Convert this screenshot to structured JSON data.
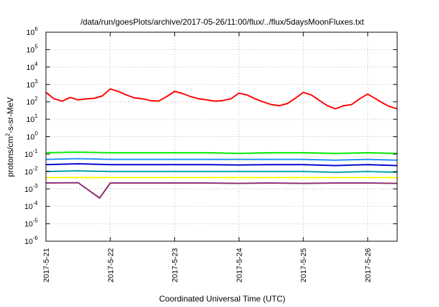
{
  "chart_data": {
    "type": "line",
    "title": "/data/run/goesPlots/archive/2017-05-26/11:00/flux/../flux/5daysMoonFluxes.txt",
    "xlabel": "Coordinated Universal Time (UTC)",
    "ylabel": {
      "pre": "protons/cm",
      "sup": "2",
      "post": "-s-sr-MeV"
    },
    "y_scale": "log",
    "ylim": [
      1e-06,
      1000000.0
    ],
    "y_ticks": [
      {
        "value": 1000000.0,
        "base": "10",
        "exp": "6"
      },
      {
        "value": 100000.0,
        "base": "10",
        "exp": "5"
      },
      {
        "value": 10000.0,
        "base": "10",
        "exp": "4"
      },
      {
        "value": 1000.0,
        "base": "10",
        "exp": "3"
      },
      {
        "value": 100.0,
        "base": "10",
        "exp": "2"
      },
      {
        "value": 10.0,
        "base": "10",
        "exp": "1"
      },
      {
        "value": 1.0,
        "base": "10",
        "exp": "0"
      },
      {
        "value": 0.1,
        "base": "10",
        "exp": "-1"
      },
      {
        "value": 0.01,
        "base": "10",
        "exp": "-2"
      },
      {
        "value": 0.001,
        "base": "10",
        "exp": "-3"
      },
      {
        "value": 0.0001,
        "base": "10",
        "exp": "-4"
      },
      {
        "value": 1e-05,
        "base": "10",
        "exp": "-5"
      },
      {
        "value": 1e-06,
        "base": "10",
        "exp": "-6"
      }
    ],
    "xlim": [
      "2017-05-21T00:00",
      "2017-05-26T11:00"
    ],
    "x_ticks": [
      "2017-5-21",
      "2017-5-22",
      "2017-5-23",
      "2017-5-24",
      "2017-5-25",
      "2017-5-26"
    ],
    "x_tick_dates": [
      "2017-05-21",
      "2017-05-22",
      "2017-05-23",
      "2017-05-24",
      "2017-05-25",
      "2017-05-26"
    ],
    "grid": true,
    "series": [
      {
        "color": "#ff0000",
        "points": [
          [
            "2017-05-21T00:00",
            350
          ],
          [
            "2017-05-21T03:00",
            150
          ],
          [
            "2017-05-21T06:00",
            110
          ],
          [
            "2017-05-21T09:00",
            180
          ],
          [
            "2017-05-21T12:00",
            130
          ],
          [
            "2017-05-21T15:00",
            150
          ],
          [
            "2017-05-21T18:00",
            160
          ],
          [
            "2017-05-21T21:00",
            220
          ],
          [
            "2017-05-22T00:00",
            550
          ],
          [
            "2017-05-22T03:00",
            400
          ],
          [
            "2017-05-22T06:00",
            250
          ],
          [
            "2017-05-22T09:00",
            170
          ],
          [
            "2017-05-22T12:00",
            150
          ],
          [
            "2017-05-22T15:00",
            120
          ],
          [
            "2017-05-22T18:00",
            110
          ],
          [
            "2017-05-22T21:00",
            200
          ],
          [
            "2017-05-23T00:00",
            400
          ],
          [
            "2017-05-23T03:00",
            300
          ],
          [
            "2017-05-23T06:00",
            200
          ],
          [
            "2017-05-23T09:00",
            150
          ],
          [
            "2017-05-23T12:00",
            130
          ],
          [
            "2017-05-23T15:00",
            110
          ],
          [
            "2017-05-23T18:00",
            120
          ],
          [
            "2017-05-23T21:00",
            150
          ],
          [
            "2017-05-24T00:00",
            320
          ],
          [
            "2017-05-24T03:00",
            250
          ],
          [
            "2017-05-24T06:00",
            150
          ],
          [
            "2017-05-24T09:00",
            100
          ],
          [
            "2017-05-24T12:00",
            70
          ],
          [
            "2017-05-24T15:00",
            60
          ],
          [
            "2017-05-24T18:00",
            80
          ],
          [
            "2017-05-24T21:00",
            160
          ],
          [
            "2017-05-25T00:00",
            350
          ],
          [
            "2017-05-25T03:00",
            250
          ],
          [
            "2017-05-25T06:00",
            120
          ],
          [
            "2017-05-25T09:00",
            60
          ],
          [
            "2017-05-25T12:00",
            40
          ],
          [
            "2017-05-25T15:00",
            60
          ],
          [
            "2017-05-25T18:00",
            70
          ],
          [
            "2017-05-25T21:00",
            150
          ],
          [
            "2017-05-26T00:00",
            280
          ],
          [
            "2017-05-26T03:00",
            150
          ],
          [
            "2017-05-26T06:00",
            80
          ],
          [
            "2017-05-26T08:00",
            55
          ],
          [
            "2017-05-26T11:00",
            40
          ]
        ]
      },
      {
        "color": "#00ee00",
        "points": [
          [
            "2017-05-21T00:00",
            0.12
          ],
          [
            "2017-05-21T12:00",
            0.13
          ],
          [
            "2017-05-22T00:00",
            0.12
          ],
          [
            "2017-05-22T12:00",
            0.12
          ],
          [
            "2017-05-23T00:00",
            0.12
          ],
          [
            "2017-05-23T12:00",
            0.12
          ],
          [
            "2017-05-24T00:00",
            0.11
          ],
          [
            "2017-05-24T12:00",
            0.12
          ],
          [
            "2017-05-25T00:00",
            0.12
          ],
          [
            "2017-05-25T12:00",
            0.11
          ],
          [
            "2017-05-26T00:00",
            0.12
          ],
          [
            "2017-05-26T11:00",
            0.11
          ]
        ]
      },
      {
        "color": "#1e90ff",
        "points": [
          [
            "2017-05-21T00:00",
            0.05
          ],
          [
            "2017-05-21T12:00",
            0.055
          ],
          [
            "2017-05-22T00:00",
            0.05
          ],
          [
            "2017-05-22T12:00",
            0.05
          ],
          [
            "2017-05-23T00:00",
            0.05
          ],
          [
            "2017-05-23T12:00",
            0.05
          ],
          [
            "2017-05-24T00:00",
            0.05
          ],
          [
            "2017-05-24T12:00",
            0.05
          ],
          [
            "2017-05-25T00:00",
            0.05
          ],
          [
            "2017-05-25T12:00",
            0.045
          ],
          [
            "2017-05-26T00:00",
            0.05
          ],
          [
            "2017-05-26T11:00",
            0.045
          ]
        ]
      },
      {
        "color": "#0000cd",
        "points": [
          [
            "2017-05-21T00:00",
            0.025
          ],
          [
            "2017-05-21T12:00",
            0.028
          ],
          [
            "2017-05-22T00:00",
            0.025
          ],
          [
            "2017-05-22T12:00",
            0.025
          ],
          [
            "2017-05-23T00:00",
            0.025
          ],
          [
            "2017-05-23T12:00",
            0.025
          ],
          [
            "2017-05-24T00:00",
            0.024
          ],
          [
            "2017-05-24T12:00",
            0.025
          ],
          [
            "2017-05-25T00:00",
            0.025
          ],
          [
            "2017-05-25T12:00",
            0.022
          ],
          [
            "2017-05-26T00:00",
            0.025
          ],
          [
            "2017-05-26T11:00",
            0.022
          ]
        ]
      },
      {
        "color": "#00a0b0",
        "points": [
          [
            "2017-05-21T00:00",
            0.01
          ],
          [
            "2017-05-21T12:00",
            0.011
          ],
          [
            "2017-05-22T00:00",
            0.01
          ],
          [
            "2017-05-22T12:00",
            0.01
          ],
          [
            "2017-05-23T00:00",
            0.01
          ],
          [
            "2017-05-23T12:00",
            0.01
          ],
          [
            "2017-05-24T00:00",
            0.01
          ],
          [
            "2017-05-24T12:00",
            0.01
          ],
          [
            "2017-05-25T00:00",
            0.01
          ],
          [
            "2017-05-25T12:00",
            0.009
          ],
          [
            "2017-05-26T00:00",
            0.01
          ],
          [
            "2017-05-26T11:00",
            0.009
          ]
        ]
      },
      {
        "color": "#ffff00",
        "points": [
          [
            "2017-05-21T00:00",
            0.0045
          ],
          [
            "2017-05-22T00:00",
            0.0045
          ],
          [
            "2017-05-23T00:00",
            0.0045
          ],
          [
            "2017-05-24T00:00",
            0.0045
          ],
          [
            "2017-05-25T00:00",
            0.0045
          ],
          [
            "2017-05-26T00:00",
            0.0045
          ],
          [
            "2017-05-26T11:00",
            0.0045
          ]
        ]
      },
      {
        "color": "#8b2a6b",
        "points": [
          [
            "2017-05-21T00:00",
            0.0022
          ],
          [
            "2017-05-21T12:00",
            0.0023
          ],
          [
            "2017-05-21T20:00",
            0.0003
          ],
          [
            "2017-05-22T00:00",
            0.0022
          ],
          [
            "2017-05-22T12:00",
            0.0022
          ],
          [
            "2017-05-23T00:00",
            0.0022
          ],
          [
            "2017-05-23T12:00",
            0.0022
          ],
          [
            "2017-05-24T00:00",
            0.0021
          ],
          [
            "2017-05-24T12:00",
            0.0022
          ],
          [
            "2017-05-25T00:00",
            0.0021
          ],
          [
            "2017-05-25T12:00",
            0.0022
          ],
          [
            "2017-05-26T00:00",
            0.0022
          ],
          [
            "2017-05-26T11:00",
            0.0021
          ]
        ]
      }
    ]
  }
}
